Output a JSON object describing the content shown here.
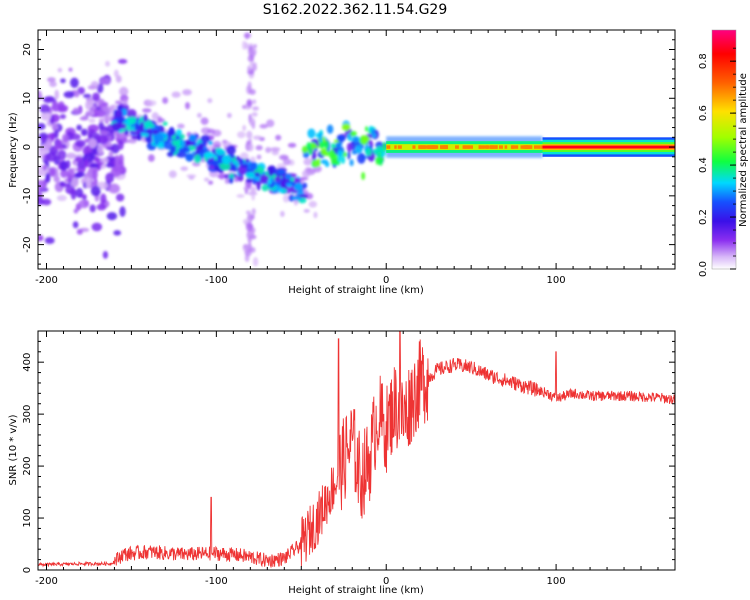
{
  "title": "S162.2022.362.11.54.G29",
  "chart_data": [
    {
      "type": "heatmap",
      "xlabel": "Height of straight line (km)",
      "ylabel": "Frequency (Hz)",
      "xlim": [
        -205,
        170
      ],
      "ylim": [
        -25,
        24
      ],
      "xticks": [
        -200,
        -100,
        0,
        100
      ],
      "yticks": [
        -20,
        -10,
        0,
        10,
        20
      ],
      "colorbar": {
        "label": "Normalized spectral amplitude",
        "range": [
          0,
          0.92
        ],
        "ticks": [
          0.0,
          0.2,
          0.4,
          0.6,
          0.8
        ]
      },
      "features": [
        {
          "segment": "diffuse",
          "x_range": [
            -205,
            -160
          ],
          "freq_center": 0,
          "freq_spread": 22,
          "amplitude": 0.15
        },
        {
          "segment": "descending cluster",
          "x_start": -160,
          "x_end": -48,
          "freq_start": 6,
          "freq_end": -9,
          "amplitude": 0.3
        },
        {
          "segment": "transition",
          "x_range": [
            -48,
            0
          ],
          "freq_center": 0,
          "freq_spread": 6,
          "amplitude": 0.4
        },
        {
          "segment": "steady line",
          "x_range": [
            0,
            92
          ],
          "freq_center": 0,
          "amplitude": 0.75
        },
        {
          "segment": "steady line",
          "x_range": [
            92,
            170
          ],
          "freq_center": 0,
          "amplitude": 0.9
        }
      ]
    },
    {
      "type": "line",
      "xlabel": "Height of straight line (km)",
      "ylabel": "SNR (10 * v/v)",
      "xlim": [
        -205,
        170
      ],
      "ylim": [
        0,
        460
      ],
      "xticks": [
        -200,
        -100,
        0,
        100
      ],
      "yticks": [
        0,
        100,
        200,
        300,
        400
      ],
      "series": [
        {
          "color": "#ee3333",
          "x": [
            -205,
            -180,
            -162,
            -155,
            -140,
            -120,
            -100,
            -85,
            -70,
            -60,
            -50,
            -40,
            -30,
            -25,
            -20,
            -15,
            -10,
            -5,
            0,
            5,
            10,
            15,
            20,
            25,
            30,
            40,
            50,
            60,
            70,
            80,
            90,
            95,
            100,
            110,
            120,
            140,
            160,
            170
          ],
          "values": [
            10,
            12,
            12,
            30,
            35,
            30,
            32,
            28,
            18,
            22,
            50,
            100,
            170,
            210,
            250,
            175,
            210,
            300,
            270,
            320,
            290,
            330,
            360,
            370,
            385,
            395,
            390,
            375,
            365,
            355,
            345,
            340,
            330,
            340,
            335,
            335,
            332,
            328
          ]
        }
      ],
      "annotations": [
        {
          "x": -103,
          "peak": 140
        },
        {
          "x": -28,
          "peak": 445
        },
        {
          "x": 8,
          "peak": 460
        },
        {
          "x": 100,
          "peak": 420
        }
      ]
    }
  ]
}
